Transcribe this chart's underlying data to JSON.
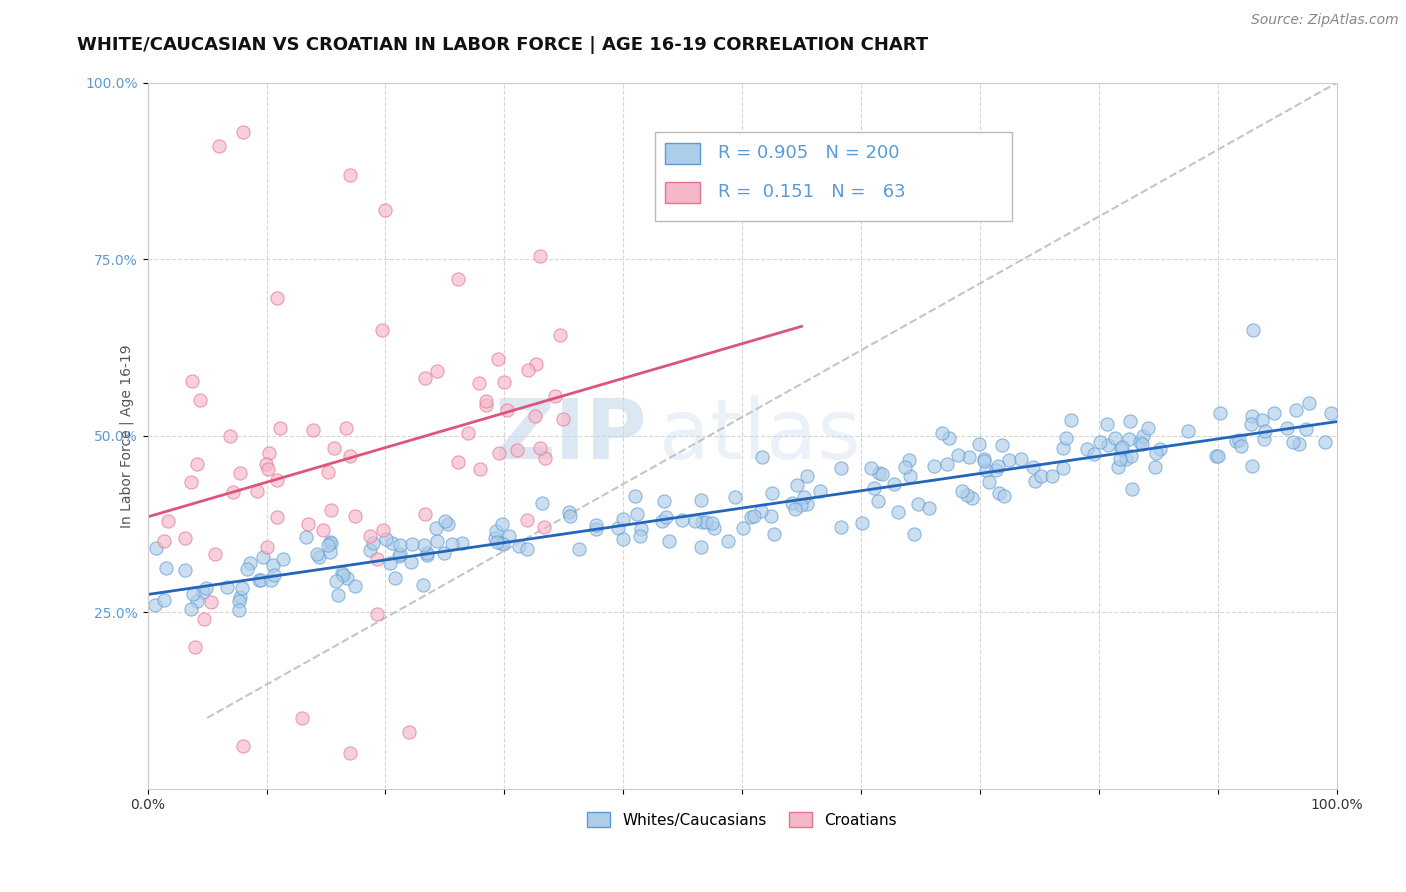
{
  "title": "WHITE/CAUCASIAN VS CROATIAN IN LABOR FORCE | AGE 16-19 CORRELATION CHART",
  "source": "Source: ZipAtlas.com",
  "ylabel": "In Labor Force | Age 16-19",
  "watermark_zip": "ZIP",
  "watermark_atlas": "atlas",
  "xlim": [
    0.0,
    1.0
  ],
  "ylim": [
    0.0,
    1.0
  ],
  "white_R": 0.905,
  "white_N": 200,
  "croatian_R": 0.151,
  "croatian_N": 63,
  "white_color": "#aecde8",
  "croatian_color": "#f4b8c8",
  "white_edge_color": "#5b9bd5",
  "croatian_edge_color": "#e87090",
  "white_trend_color": "#2266bb",
  "croatian_trend_color": "#dd5577",
  "dash_color": "#bbbbbb",
  "background_color": "#ffffff",
  "grid_color": "#cccccc",
  "title_fontsize": 13,
  "axis_label_fontsize": 10,
  "tick_fontsize": 10,
  "legend_fontsize": 13,
  "source_fontsize": 10
}
